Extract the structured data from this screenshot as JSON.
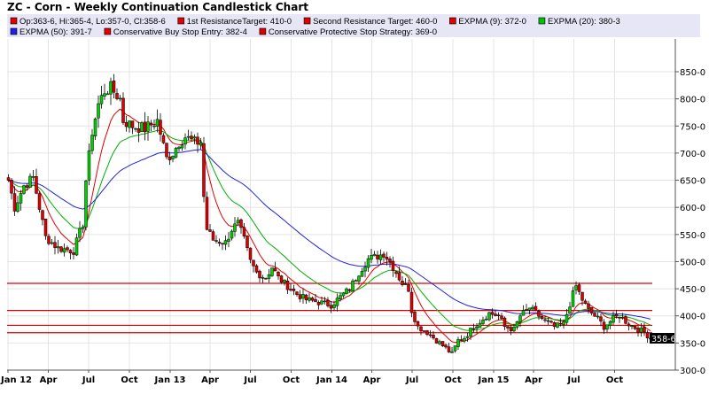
{
  "chart_data": {
    "type": "candlestick",
    "title": "ZC - Corn - Weekly Continuation Candlestick Chart",
    "legend": [
      {
        "label": "Op:363-6, Hi:365-4, Lo:357-0, Cl:358-6",
        "color": "#e00000"
      },
      {
        "label": "1st ResistanceTarget: 410-0",
        "color": "#e00000"
      },
      {
        "label": "Second Resistance Target: 460-0",
        "color": "#e00000"
      },
      {
        "label": "EXPMA (9): 372-0",
        "color": "#e00000"
      },
      {
        "label": "EXPMA (20): 380-3",
        "color": "#00c000"
      },
      {
        "label": "EXPMA (50): 391-7",
        "color": "#2020e0"
      },
      {
        "label": "Conservative Buy Stop Entry: 382-4",
        "color": "#e00000"
      },
      {
        "label": "Conservative Protective Stop Strategy: 369-0",
        "color": "#e00000"
      }
    ],
    "legend_placement": "top",
    "ylim": [
      300,
      875
    ],
    "y_ticks": [
      {
        "v": 300,
        "label": "300-0"
      },
      {
        "v": 350,
        "label": "350-0"
      },
      {
        "v": 400,
        "label": "400-0"
      },
      {
        "v": 450,
        "label": "450-0"
      },
      {
        "v": 500,
        "label": "500-0"
      },
      {
        "v": 550,
        "label": "550-0"
      },
      {
        "v": 600,
        "label": "600-0"
      },
      {
        "v": 650,
        "label": "650-0"
      },
      {
        "v": 700,
        "label": "700-0"
      },
      {
        "v": 750,
        "label": "750-0"
      },
      {
        "v": 800,
        "label": "800-0"
      },
      {
        "v": 850,
        "label": "850-0"
      }
    ],
    "x_ticks": [
      {
        "d": "2012-01-01",
        "label": "Jan 12"
      },
      {
        "d": "2012-04-01",
        "label": "Apr"
      },
      {
        "d": "2012-07-01",
        "label": "Jul"
      },
      {
        "d": "2012-10-01",
        "label": "Oct"
      },
      {
        "d": "2013-01-01",
        "label": "Jan 13"
      },
      {
        "d": "2013-04-01",
        "label": "Apr"
      },
      {
        "d": "2013-07-01",
        "label": "Jul"
      },
      {
        "d": "2013-10-01",
        "label": "Oct"
      },
      {
        "d": "2014-01-01",
        "label": "Jan 14"
      },
      {
        "d": "2014-04-01",
        "label": "Apr"
      },
      {
        "d": "2014-07-01",
        "label": "Jul"
      },
      {
        "d": "2014-10-01",
        "label": "Oct"
      },
      {
        "d": "2015-01-01",
        "label": "Jan 15"
      },
      {
        "d": "2015-04-01",
        "label": "Apr"
      },
      {
        "d": "2015-07-01",
        "label": "Jul"
      },
      {
        "d": "2015-10-01",
        "label": "Oct"
      }
    ],
    "grid": true,
    "last_price_label": "358-6",
    "horizontal_lines": [
      {
        "name": "Second Resistance Target",
        "value": 460,
        "color": "#e00000"
      },
      {
        "name": "1st ResistanceTarget",
        "value": 410,
        "color": "#e00000"
      },
      {
        "name": "Conservative Buy Stop Entry",
        "value": 382.5,
        "color": "#e00000"
      },
      {
        "name": "Conservative Protective Stop Strategy",
        "value": 369,
        "color": "#e00000"
      }
    ],
    "moving_averages": [
      {
        "name": "EXPMA (9)",
        "period": 9,
        "color": "#e00000"
      },
      {
        "name": "EXPMA (20)",
        "period": 20,
        "color": "#00b000"
      },
      {
        "name": "EXPMA (50)",
        "period": 50,
        "color": "#2020e0"
      }
    ],
    "weekly_close_approx": [
      [
        "2012-01-02",
        650
      ],
      [
        "2012-01-16",
        600
      ],
      [
        "2012-02-06",
        640
      ],
      [
        "2012-02-27",
        655
      ],
      [
        "2012-03-26",
        545
      ],
      [
        "2012-04-23",
        525
      ],
      [
        "2012-05-28",
        520
      ],
      [
        "2012-06-18",
        570
      ],
      [
        "2012-06-25",
        650
      ],
      [
        "2012-07-09",
        740
      ],
      [
        "2012-07-23",
        790
      ],
      [
        "2012-08-06",
        815
      ],
      [
        "2012-08-20",
        820
      ],
      [
        "2012-09-10",
        800
      ],
      [
        "2012-09-17",
        760
      ],
      [
        "2012-10-08",
        750
      ],
      [
        "2012-11-05",
        745
      ],
      [
        "2012-12-03",
        760
      ],
      [
        "2012-12-24",
        690
      ],
      [
        "2013-01-07",
        700
      ],
      [
        "2013-01-21",
        720
      ],
      [
        "2013-02-04",
        730
      ],
      [
        "2013-02-25",
        720
      ],
      [
        "2013-03-11",
        720
      ],
      [
        "2013-03-18",
        620
      ],
      [
        "2013-03-25",
        560
      ],
      [
        "2013-04-08",
        540
      ],
      [
        "2013-05-06",
        535
      ],
      [
        "2013-05-20",
        560
      ],
      [
        "2013-06-03",
        570
      ],
      [
        "2013-06-17",
        540
      ],
      [
        "2013-07-01",
        500
      ],
      [
        "2013-07-15",
        480
      ],
      [
        "2013-08-05",
        470
      ],
      [
        "2013-08-19",
        490
      ],
      [
        "2013-09-02",
        470
      ],
      [
        "2013-09-23",
        455
      ],
      [
        "2013-10-14",
        440
      ],
      [
        "2013-11-04",
        430
      ],
      [
        "2013-12-02",
        425
      ],
      [
        "2013-12-30",
        420
      ],
      [
        "2014-01-13",
        430
      ],
      [
        "2014-02-10",
        450
      ],
      [
        "2014-03-03",
        480
      ],
      [
        "2014-03-24",
        505
      ],
      [
        "2014-04-14",
        510
      ],
      [
        "2014-04-28",
        515
      ],
      [
        "2014-05-12",
        500
      ],
      [
        "2014-05-26",
        480
      ],
      [
        "2014-06-09",
        460
      ],
      [
        "2014-06-23",
        450
      ],
      [
        "2014-06-30",
        410
      ],
      [
        "2014-07-14",
        380
      ],
      [
        "2014-08-04",
        370
      ],
      [
        "2014-08-18",
        360
      ],
      [
        "2014-09-08",
        345
      ],
      [
        "2014-09-29",
        330
      ],
      [
        "2014-10-13",
        355
      ],
      [
        "2014-10-27",
        360
      ],
      [
        "2014-11-17",
        380
      ],
      [
        "2014-12-08",
        395
      ],
      [
        "2014-12-22",
        405
      ],
      [
        "2015-01-12",
        400
      ],
      [
        "2015-01-26",
        380
      ],
      [
        "2015-02-16",
        375
      ],
      [
        "2015-03-02",
        400
      ],
      [
        "2015-03-23",
        415
      ],
      [
        "2015-04-06",
        405
      ],
      [
        "2015-04-27",
        390
      ],
      [
        "2015-05-18",
        380
      ],
      [
        "2015-06-08",
        385
      ],
      [
        "2015-06-29",
        440
      ],
      [
        "2015-07-06",
        455
      ],
      [
        "2015-07-20",
        430
      ],
      [
        "2015-08-03",
        410
      ],
      [
        "2015-08-24",
        395
      ],
      [
        "2015-09-07",
        380
      ],
      [
        "2015-09-28",
        395
      ],
      [
        "2015-10-12",
        400
      ],
      [
        "2015-11-02",
        385
      ],
      [
        "2015-11-23",
        375
      ],
      [
        "2015-12-07",
        370
      ],
      [
        "2015-12-21",
        358.75
      ]
    ]
  }
}
